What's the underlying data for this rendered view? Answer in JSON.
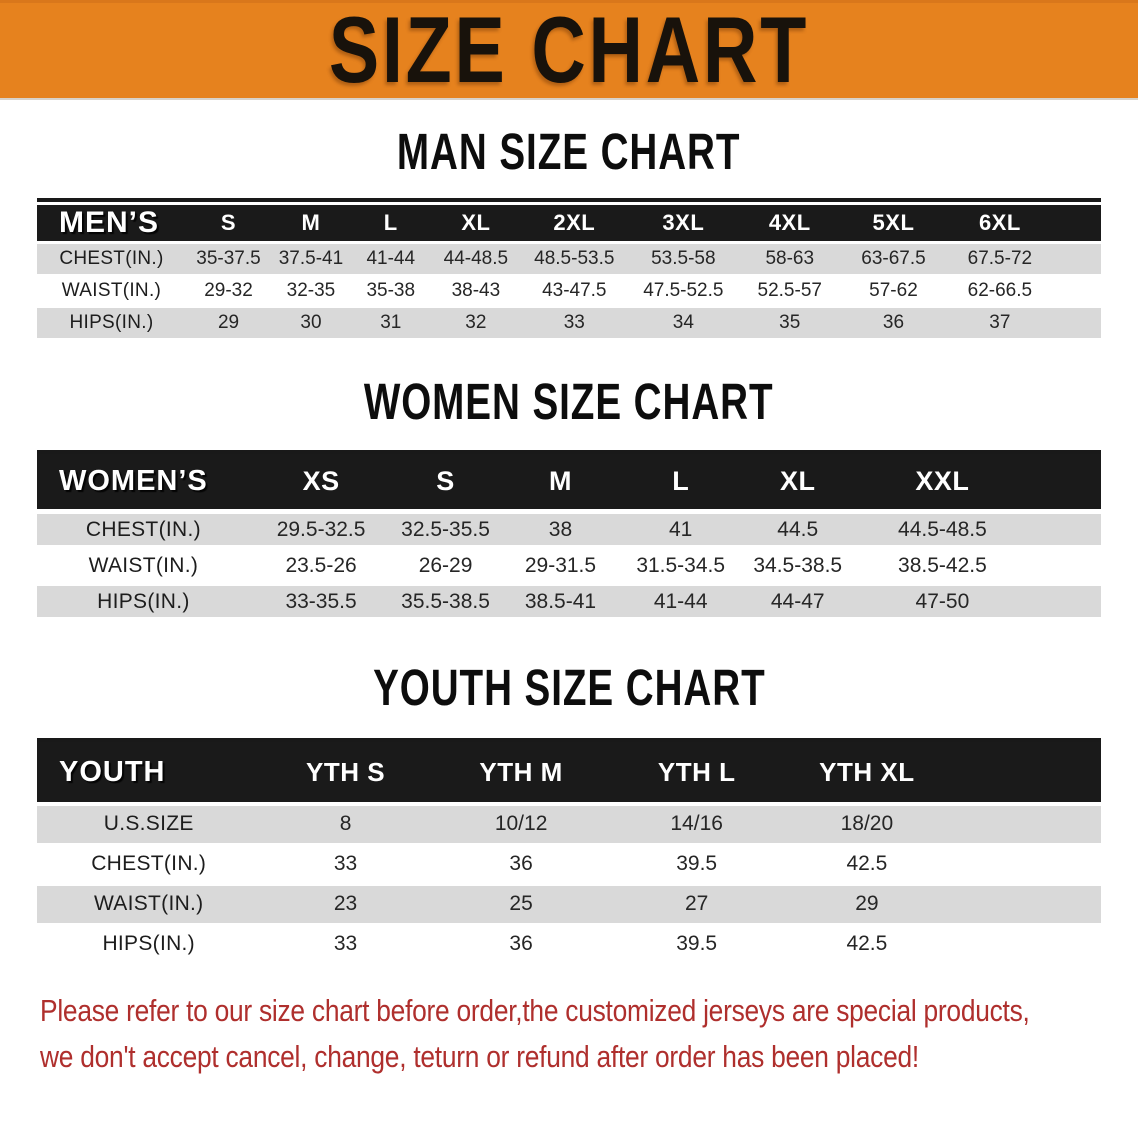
{
  "banner": {
    "title": "SIZE CHART"
  },
  "chart_data": [
    {
      "type": "table",
      "title": "MAN SIZE CHART",
      "row_header": "MEN’S",
      "columns": [
        "S",
        "M",
        "L",
        "XL",
        "2XL",
        "3XL",
        "4XL",
        "5XL",
        "6XL"
      ],
      "rows": [
        {
          "label": "CHEST(IN.)",
          "values": [
            "35-37.5",
            "37.5-41",
            "41-44",
            "44-48.5",
            "48.5-53.5",
            "53.5-58",
            "58-63",
            "63-67.5",
            "67.5-72"
          ]
        },
        {
          "label": "WAIST(IN.)",
          "values": [
            "29-32",
            "32-35",
            "35-38",
            "38-43",
            "43-47.5",
            "47.5-52.5",
            "52.5-57",
            "57-62",
            "62-66.5"
          ]
        },
        {
          "label": "HIPS(IN.)",
          "values": [
            "29",
            "30",
            "31",
            "32",
            "33",
            "34",
            "35",
            "36",
            "37"
          ]
        }
      ]
    },
    {
      "type": "table",
      "title": "WOMEN SIZE CHART",
      "row_header": "WOMEN’S",
      "columns": [
        "XS",
        "S",
        "M",
        "L",
        "XL",
        "XXL"
      ],
      "rows": [
        {
          "label": "CHEST(IN.)",
          "values": [
            "29.5-32.5",
            "32.5-35.5",
            "38",
            "41",
            "44.5",
            "44.5-48.5"
          ]
        },
        {
          "label": "WAIST(IN.)",
          "values": [
            "23.5-26",
            "26-29",
            "29-31.5",
            "31.5-34.5",
            "34.5-38.5",
            "38.5-42.5"
          ]
        },
        {
          "label": "HIPS(IN.)",
          "values": [
            "33-35.5",
            "35.5-38.5",
            "38.5-41",
            "41-44",
            "44-47",
            "47-50"
          ]
        }
      ]
    },
    {
      "type": "table",
      "title": "YOUTH SIZE CHART",
      "row_header": "YOUTH",
      "columns": [
        "YTH S",
        "YTH M",
        "YTH L",
        "YTH XL"
      ],
      "rows": [
        {
          "label": "U.S.SIZE",
          "values": [
            "8",
            "10/12",
            "14/16",
            "18/20"
          ]
        },
        {
          "label": "CHEST(IN.)",
          "values": [
            "33",
            "36",
            "39.5",
            "42.5"
          ]
        },
        {
          "label": "WAIST(IN.)",
          "values": [
            "23",
            "25",
            "27",
            "29"
          ]
        },
        {
          "label": "HIPS(IN.)",
          "values": [
            "33",
            "36",
            "39.5",
            "42.5"
          ]
        }
      ]
    }
  ],
  "disclaimer": {
    "line1": "Please refer to our size chart before order,the customized jerseys are special products,",
    "line2": "we don't accept cancel, change, teturn or refund after order has been placed!"
  },
  "colors": {
    "banner_bg": "#E6821E",
    "header_bar": "#1A1A1A",
    "row_alt": "#D9D9D9",
    "disclaimer_text": "#AF2F2D"
  }
}
